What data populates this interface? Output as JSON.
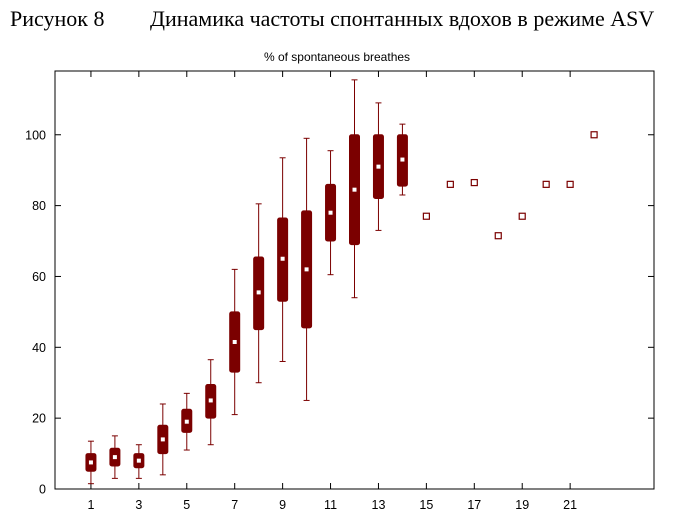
{
  "header": {
    "figure_label": "Рисунок 8",
    "figure_title": "Динамика частоты спонтанных вдохов в режиме ASV"
  },
  "colors": {
    "box": "#7b0000",
    "median_marker": "#ffffff",
    "axis": "#000000"
  },
  "chart_data": {
    "type": "box",
    "title": "% of spontaneous breathes",
    "xlabel": "",
    "ylabel": "",
    "xlim": [
      -0.5,
      24.5
    ],
    "ylim": [
      0,
      118
    ],
    "x_ticks": [
      1,
      3,
      5,
      7,
      9,
      11,
      13,
      15,
      17,
      19,
      21
    ],
    "y_ticks": [
      0,
      20,
      40,
      60,
      80,
      100
    ],
    "grid": false,
    "boxes": [
      {
        "x": 1,
        "min": 1.5,
        "q1": 5,
        "median": 7.5,
        "q3": 10,
        "max": 13.5
      },
      {
        "x": 2,
        "min": 3,
        "q1": 6.5,
        "median": 9,
        "q3": 11.5,
        "max": 15
      },
      {
        "x": 3,
        "min": 3,
        "q1": 6,
        "median": 8,
        "q3": 10,
        "max": 12.5
      },
      {
        "x": 4,
        "min": 4,
        "q1": 10,
        "median": 14,
        "q3": 18,
        "max": 24
      },
      {
        "x": 5,
        "min": 11,
        "q1": 16,
        "median": 19,
        "q3": 22.5,
        "max": 27
      },
      {
        "x": 6,
        "min": 12.5,
        "q1": 20,
        "median": 25,
        "q3": 29.5,
        "max": 36.5
      },
      {
        "x": 7,
        "min": 21,
        "q1": 33,
        "median": 41.5,
        "q3": 50,
        "max": 62
      },
      {
        "x": 8,
        "min": 30,
        "q1": 45,
        "median": 55.5,
        "q3": 65.5,
        "max": 80.5
      },
      {
        "x": 9,
        "min": 36,
        "q1": 53,
        "median": 65,
        "q3": 76.5,
        "max": 93.5
      },
      {
        "x": 10,
        "min": 25,
        "q1": 45.5,
        "median": 62,
        "q3": 78.5,
        "max": 99
      },
      {
        "x": 11,
        "min": 60.5,
        "q1": 70,
        "median": 78,
        "q3": 86,
        "max": 95.5
      },
      {
        "x": 12,
        "min": 54,
        "q1": 69,
        "median": 84.5,
        "q3": 100,
        "max": 115.5
      },
      {
        "x": 13,
        "min": 73,
        "q1": 82,
        "median": 91,
        "q3": 100,
        "max": 109
      },
      {
        "x": 14,
        "min": 83,
        "q1": 85.5,
        "median": 93,
        "q3": 100,
        "max": 103
      }
    ],
    "points": [
      {
        "x": 15,
        "y": 77
      },
      {
        "x": 16,
        "y": 86
      },
      {
        "x": 17,
        "y": 86.5
      },
      {
        "x": 18,
        "y": 71.5
      },
      {
        "x": 19,
        "y": 77
      },
      {
        "x": 20,
        "y": 86
      },
      {
        "x": 21,
        "y": 86
      },
      {
        "x": 22,
        "y": 100
      }
    ]
  }
}
